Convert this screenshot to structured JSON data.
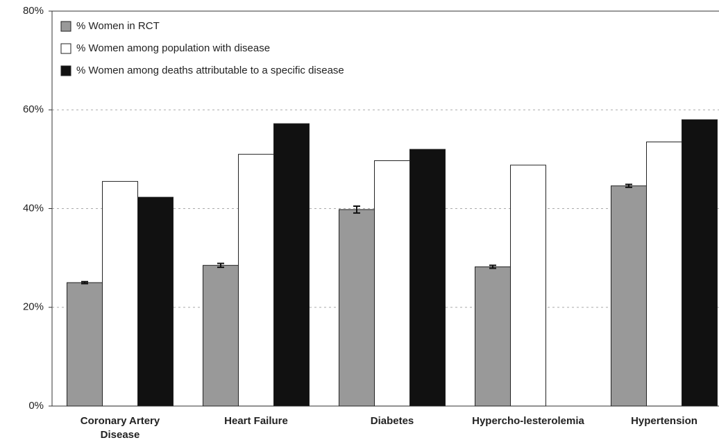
{
  "chart_data": {
    "type": "bar",
    "categories": [
      "Coronary Artery Disease",
      "Heart Failure",
      "Diabetes",
      "Hypercho-lesterolemia",
      "Hypertension"
    ],
    "series": [
      {
        "name": "% Women in RCT",
        "color": "#999999",
        "values": [
          25,
          28.5,
          39.8,
          28.2,
          44.6
        ],
        "errors": [
          0.2,
          0.4,
          0.7,
          0.3,
          0.3
        ]
      },
      {
        "name": "% Women among population with disease",
        "color": "#ffffff",
        "values": [
          45.5,
          51,
          49.7,
          48.8,
          53.5
        ]
      },
      {
        "name": "% Women among deaths attributable to a specific disease",
        "color": "#111111",
        "values": [
          42.3,
          57.2,
          52,
          null,
          58
        ]
      }
    ],
    "ylim": [
      0,
      80
    ],
    "yticks": [
      {
        "value": 0,
        "label": "0%"
      },
      {
        "value": 20,
        "label": "20%"
      },
      {
        "value": 40,
        "label": "40%"
      },
      {
        "value": 60,
        "label": "60%"
      },
      {
        "value": 80,
        "label": "80%"
      }
    ],
    "grid": true,
    "legend": "upper left"
  }
}
